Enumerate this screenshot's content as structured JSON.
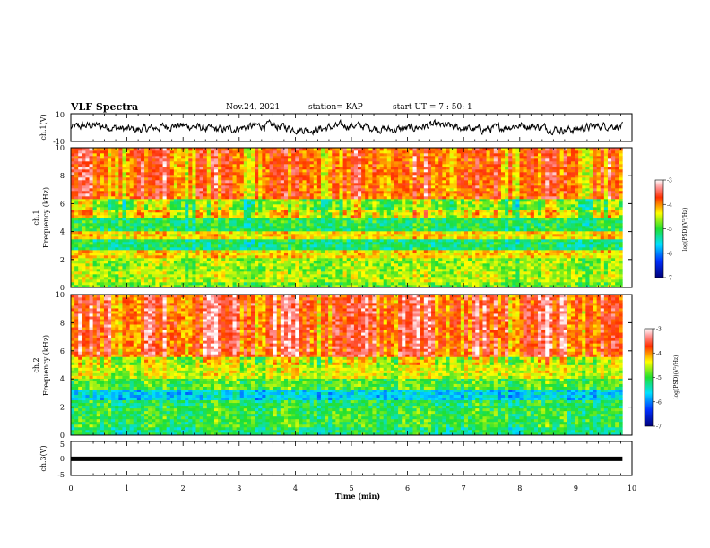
{
  "header": {
    "title": "VLF Spectra",
    "date": "Nov.24, 2021",
    "station": "station= KAP",
    "start": "start  UT =   7 : 50: 1"
  },
  "chart_data": [
    {
      "type": "line",
      "panel": "ch1-waveform",
      "ylabel": "ch.1(V)",
      "ylim": [
        -10,
        10
      ],
      "yticks": [
        "10",
        "-10"
      ],
      "xlim": [
        0,
        10
      ],
      "x_extent": [
        0,
        9.83
      ],
      "series": [
        {
          "color": "#000000",
          "mean": 0,
          "amplitude": 4
        }
      ]
    },
    {
      "type": "heatmap",
      "panel": "ch1-spectrogram",
      "ylabel": "ch.1\nFrequency (kHz)",
      "ylim": [
        0,
        10
      ],
      "yticks": [
        "0",
        "2",
        "4",
        "6",
        "8",
        "10"
      ],
      "xlim": [
        0,
        10
      ],
      "x_extent": [
        0,
        9.83
      ],
      "bands": [
        {
          "f": [
            0,
            0.3
          ],
          "level": -4.8
        },
        {
          "f": [
            0.3,
            1.2
          ],
          "level": -4.6
        },
        {
          "f": [
            1.2,
            2.2
          ],
          "level": -4.7
        },
        {
          "f": [
            2.2,
            2.6
          ],
          "level": -4.3
        },
        {
          "f": [
            2.6,
            3.5
          ],
          "level": -5.2
        },
        {
          "f": [
            3.5,
            4.0
          ],
          "level": -4.3
        },
        {
          "f": [
            4.0,
            5.0
          ],
          "level": -5.1
        },
        {
          "f": [
            5.0,
            5.6
          ],
          "level": -4.4
        },
        {
          "f": [
            5.6,
            6.4
          ],
          "level": -4.8
        },
        {
          "f": [
            6.4,
            10.0
          ],
          "level": -3.9
        }
      ],
      "colorbar": {
        "label": "log(PSD)(V²/Hz)",
        "range": [
          -7,
          -3
        ],
        "ticks": [
          "-3",
          "-4",
          "-5",
          "-6",
          "-7"
        ]
      }
    },
    {
      "type": "heatmap",
      "panel": "ch2-spectrogram",
      "ylabel": "ch.2\nFrequency (kHz)",
      "ylim": [
        0,
        10
      ],
      "yticks": [
        "0",
        "2",
        "4",
        "6",
        "8",
        "10"
      ],
      "xlim": [
        0,
        10
      ],
      "x_extent": [
        0,
        9.83
      ],
      "bands": [
        {
          "f": [
            0,
            0.5
          ],
          "level": -5.2
        },
        {
          "f": [
            0.5,
            2.0
          ],
          "level": -5.0
        },
        {
          "f": [
            2.0,
            2.5
          ],
          "level": -5.1
        },
        {
          "f": [
            2.5,
            3.2
          ],
          "level": -5.6
        },
        {
          "f": [
            3.2,
            4.0
          ],
          "level": -4.9
        },
        {
          "f": [
            4.0,
            5.5
          ],
          "level": -4.5
        },
        {
          "f": [
            5.5,
            10.0
          ],
          "level": -3.7
        }
      ],
      "colorbar": {
        "label": "log(PSD)(V²/Hz)",
        "range": [
          -7,
          -3
        ],
        "ticks": [
          "-3",
          "-4",
          "-5",
          "-6",
          "-7"
        ]
      }
    },
    {
      "type": "line",
      "panel": "ch3-waveform",
      "ylabel": "ch.3(V)",
      "ylim": [
        -5,
        5
      ],
      "yticks": [
        "5",
        "0",
        "-5"
      ],
      "xlim": [
        0,
        10
      ],
      "x_extent": [
        0,
        9.83
      ],
      "series": [
        {
          "color": "#000000",
          "mean": -0.5,
          "amplitude": 0.3
        }
      ]
    }
  ],
  "xaxis": {
    "label": "Time (min)",
    "ticks": [
      "0",
      "1",
      "2",
      "3",
      "4",
      "5",
      "6",
      "7",
      "8",
      "9",
      "10"
    ]
  }
}
